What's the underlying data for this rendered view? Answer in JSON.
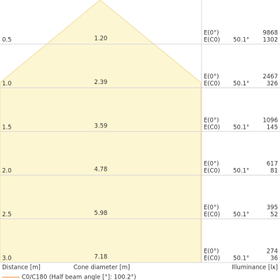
{
  "rows": [
    {
      "distance": "0.5",
      "diameter": "1.20",
      "e0_label": "E(0°)",
      "ec0_label": "E(C0)",
      "angle": "50.1°",
      "e0": "9868",
      "ec0": "1302"
    },
    {
      "distance": "1.0",
      "diameter": "2.39",
      "e0_label": "E(0°)",
      "ec0_label": "E(C0)",
      "angle": "50.1°",
      "e0": "2467",
      "ec0": "326"
    },
    {
      "distance": "1.5",
      "diameter": "3.59",
      "e0_label": "E(0°)",
      "ec0_label": "E(C0)",
      "angle": "50.1°",
      "e0": "1096",
      "ec0": "145"
    },
    {
      "distance": "2.0",
      "diameter": "4.78",
      "e0_label": "E(0°)",
      "ec0_label": "E(C0)",
      "angle": "50.1°",
      "e0": "617",
      "ec0": "81"
    },
    {
      "distance": "2.5",
      "diameter": "5.98",
      "e0_label": "E(0°)",
      "ec0_label": "E(C0)",
      "angle": "50.1°",
      "e0": "395",
      "ec0": "52"
    },
    {
      "distance": "3.0",
      "diameter": "7.18",
      "e0_label": "E(0°)",
      "ec0_label": "E(C0)",
      "angle": "50.1°",
      "e0": "274",
      "ec0": "36"
    }
  ],
  "footer": {
    "distance": "Distance [m]",
    "diameter": "Cone diameter [m]",
    "illuminance": "Illuminance [lx]"
  },
  "legend": "C0/C180 (Half beam angle [°]: 100.2°)"
}
